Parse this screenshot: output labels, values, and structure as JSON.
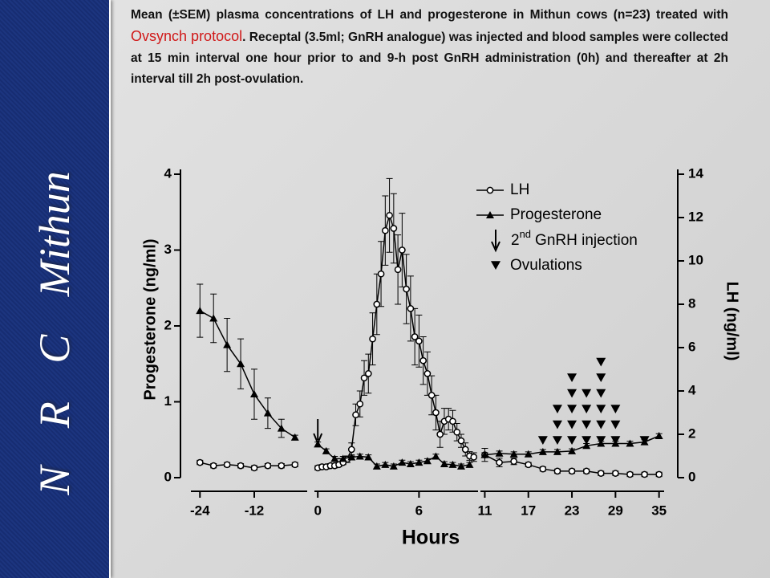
{
  "sidebar_text": "N R C Mithun",
  "caption": {
    "before": "Mean (±SEM) plasma concentrations of LH and progesterone in Mithun cows (n=23) treated with ",
    "highlight": "Ovsynch protocol",
    "after": ". Receptal (3.5ml; GnRH analogue) was injected and blood samples were collected at 15 min interval one hour prior to and 9-h post GnRH administration (0h) and thereafter at 2h interval till 2h post-ovulation."
  },
  "chart_data": {
    "type": "line",
    "xlabel": "Hours",
    "ylabel": "Progesterone (ng/ml)",
    "y2label": "LH (ng/ml)",
    "ylim": [
      0,
      4
    ],
    "yticks": [
      0,
      1,
      2,
      3,
      4
    ],
    "y2lim": [
      0,
      14
    ],
    "y2ticks": [
      0,
      2,
      4,
      6,
      8,
      10,
      12,
      14
    ],
    "x_axes": [
      {
        "xlim": [
          -26,
          -0.3
        ],
        "xticks": [
          -24,
          -12
        ]
      },
      {
        "xlim": [
          -0.2,
          9.5
        ],
        "xticks": [
          0,
          6
        ]
      },
      {
        "xlim": [
          10.4,
          35.7
        ],
        "xticks": [
          11,
          17,
          23,
          29,
          35
        ]
      }
    ],
    "legend": "upper right",
    "series": [
      {
        "name": "LH",
        "axis": "y2",
        "color": "#000000",
        "marker": "circle",
        "x": [
          -24,
          -21,
          -18,
          -15,
          -12,
          -9,
          -6,
          -3,
          null,
          0,
          0.25,
          0.5,
          0.75,
          1,
          1.25,
          1.5,
          1.75,
          2,
          2.25,
          2.5,
          2.75,
          3,
          3.25,
          3.5,
          3.75,
          4,
          4.25,
          4.5,
          4.75,
          5,
          5.25,
          5.5,
          5.75,
          6,
          6.25,
          6.5,
          6.75,
          7,
          7.25,
          7.5,
          7.75,
          8,
          8.25,
          8.5,
          8.75,
          9,
          9.25,
          null,
          11,
          13,
          15,
          17,
          19,
          21,
          23,
          25,
          27,
          29,
          31,
          33,
          35
        ],
        "values": [
          0.7,
          0.55,
          0.6,
          0.55,
          0.45,
          0.55,
          0.55,
          0.6,
          null,
          0.45,
          0.5,
          0.5,
          0.55,
          0.55,
          0.6,
          0.7,
          0.85,
          1.3,
          2.9,
          3.4,
          4.6,
          4.8,
          6.4,
          8,
          9.4,
          11.4,
          12.1,
          11.5,
          9.6,
          10.5,
          8.7,
          7.8,
          6.5,
          6.3,
          5.4,
          4.8,
          3.8,
          3,
          2,
          2.6,
          2.7,
          2.6,
          2.1,
          1.7,
          1.3,
          1,
          0.95,
          null,
          1.05,
          0.7,
          0.75,
          0.6,
          0.4,
          0.3,
          0.3,
          0.3,
          0.2,
          0.2,
          0.15,
          0.15,
          0.15
        ],
        "errors": [
          0.1,
          0.1,
          0.1,
          0.1,
          0.1,
          0.1,
          0.1,
          0.1,
          null,
          0.1,
          0.1,
          0.1,
          0.1,
          0.1,
          0.1,
          0.1,
          0.15,
          0.3,
          0.5,
          0.6,
          0.8,
          0.9,
          1.2,
          1.4,
          1.5,
          1.6,
          1.7,
          1.6,
          1.6,
          1.7,
          1.6,
          1.5,
          1.3,
          1.2,
          1.1,
          1,
          0.9,
          0.8,
          0.6,
          0.6,
          0.5,
          0.5,
          0.4,
          0.3,
          0.3,
          0.2,
          0.2,
          null,
          0.3,
          0.2,
          0.15,
          0.1,
          0.1,
          0.1,
          0.1,
          0.1,
          0.1,
          0.1,
          0.1,
          0.1,
          0.1
        ]
      },
      {
        "name": "Progesterone",
        "axis": "y",
        "color": "#000000",
        "marker": "triangle",
        "x": [
          -24,
          -21,
          -18,
          -15,
          -12,
          -9,
          -6,
          -3,
          null,
          0,
          0.5,
          1,
          1.5,
          2,
          2.5,
          3,
          3.5,
          4,
          4.5,
          5,
          5.5,
          6,
          6.5,
          7,
          7.5,
          8,
          8.5,
          9,
          null,
          11,
          13,
          15,
          17,
          19,
          21,
          23,
          25,
          27,
          29,
          31,
          33,
          35
        ],
        "values": [
          2.2,
          2.1,
          1.75,
          1.5,
          1.1,
          0.85,
          0.65,
          0.53,
          null,
          0.44,
          0.35,
          0.25,
          0.25,
          0.27,
          0.28,
          0.27,
          0.15,
          0.17,
          0.15,
          0.2,
          0.18,
          0.2,
          0.22,
          0.28,
          0.18,
          0.17,
          0.15,
          0.17,
          null,
          0.3,
          0.32,
          0.31,
          0.31,
          0.34,
          0.34,
          0.35,
          0.42,
          0.45,
          0.45,
          0.45,
          0.47,
          0.55
        ],
        "errors": [
          0.35,
          0.32,
          0.35,
          0.33,
          0.33,
          0.2,
          0.12,
          0.03,
          null,
          0.03,
          0.03,
          0.03,
          0.03,
          0.03,
          0.03,
          0.03,
          0.03,
          0.03,
          0.03,
          0.03,
          0.03,
          0.03,
          0.03,
          0.03,
          0.03,
          0.03,
          0.03,
          0.03,
          null,
          0.03,
          0.03,
          0.03,
          0.03,
          0.03,
          0.03,
          0.03,
          0.03,
          0.03,
          0.03,
          0.03,
          0.03,
          0.03
        ]
      }
    ],
    "gnrh_injection": {
      "name_parts": [
        "2",
        "nd",
        "GnRH injection"
      ],
      "x": 0
    },
    "ovulations": {
      "name": "Ovulations",
      "x": [
        19,
        21,
        23,
        25,
        27,
        29,
        33
      ],
      "counts": [
        1,
        3,
        5,
        4,
        6,
        3,
        1
      ]
    }
  }
}
